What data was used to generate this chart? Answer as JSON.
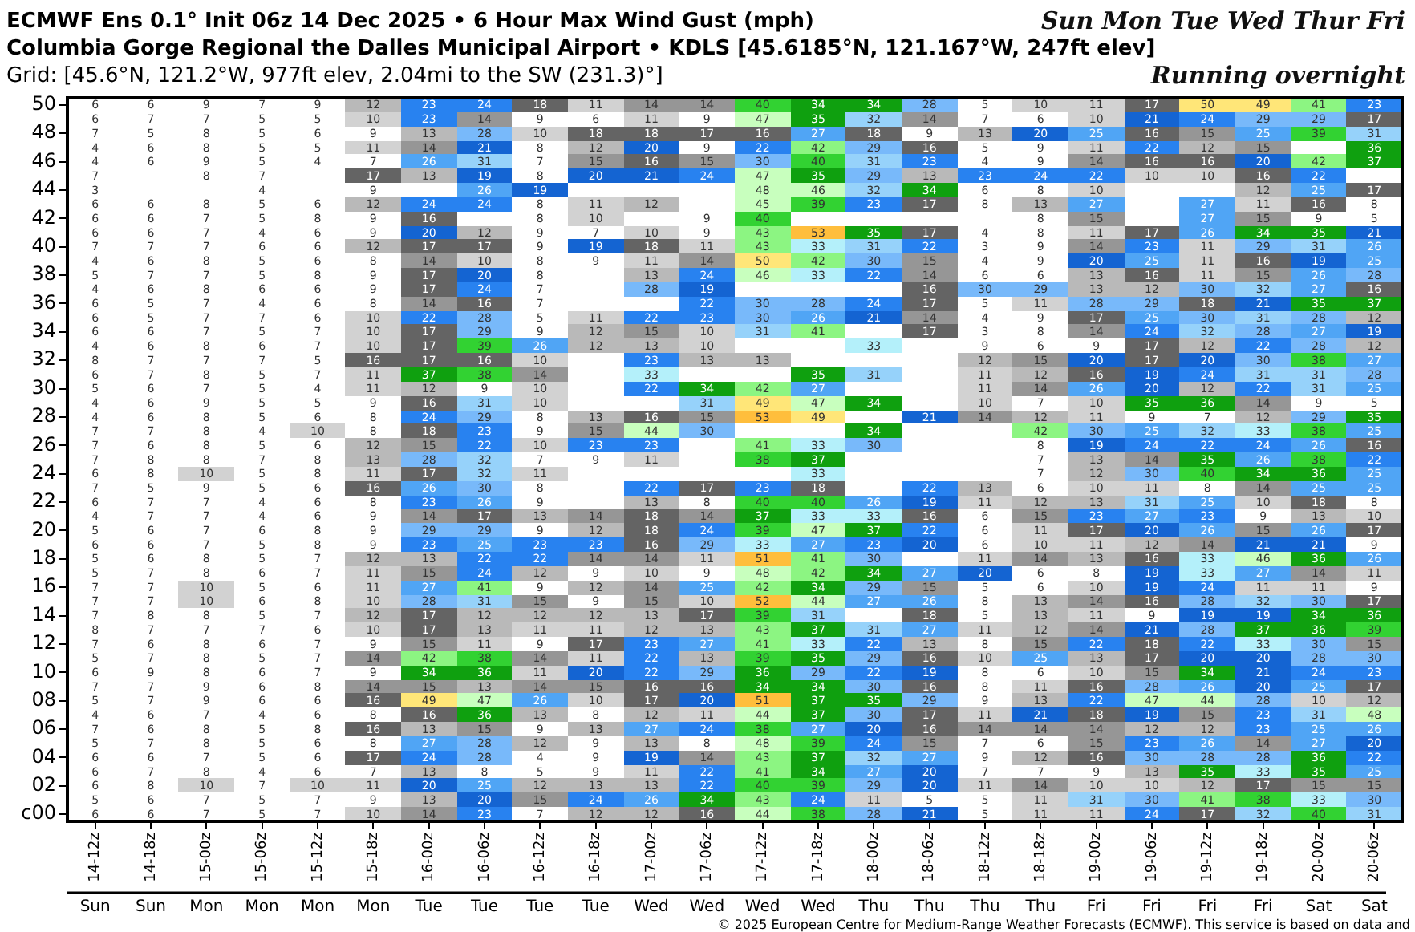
{
  "chart_data": {
    "type": "heatmap",
    "title": "ECMWF Ens 0.1° Init 06z 14 Dec 2025 • 6 Hour Max Wind Gust (mph)",
    "subtitle": "Columbia Gorge Regional the Dalles Municipal Airport • KDLS [45.6185°N, 121.167°W, 247ft elev]",
    "categories": [
      "14-12z",
      "14-18z",
      "15-00z",
      "15-06z",
      "15-12z",
      "15-18z",
      "16-00z",
      "16-06z",
      "16-12z",
      "16-18z",
      "17-00z",
      "17-06z",
      "17-12z",
      "17-18z",
      "18-00z",
      "18-06z",
      "18-12z",
      "18-18z",
      "19-00z",
      "19-06z",
      "19-12z",
      "19-18z",
      "20-00z",
      "20-06z"
    ],
    "y_categories": [
      "50",
      null,
      "48",
      null,
      "46",
      null,
      "44",
      null,
      "42",
      null,
      "40",
      null,
      "38",
      null,
      "36",
      null,
      "34",
      null,
      "32",
      null,
      "30",
      null,
      "28",
      null,
      "26",
      null,
      "24",
      null,
      "22",
      null,
      "20",
      null,
      "18",
      null,
      "16",
      null,
      "14",
      null,
      "12",
      null,
      "10",
      null,
      "08",
      null,
      "06",
      null,
      "04",
      null,
      "02",
      null,
      "c00"
    ],
    "cells": [
      [
        6,
        6,
        9,
        7,
        9,
        12,
        23,
        24,
        18,
        11,
        14,
        14,
        40,
        34,
        34,
        28,
        5,
        10,
        11,
        17,
        50,
        49,
        41,
        23
      ],
      [
        6,
        7,
        7,
        5,
        5,
        10,
        23,
        14,
        9,
        6,
        11,
        9,
        47,
        35,
        32,
        14,
        7,
        6,
        10,
        21,
        24,
        29,
        29,
        17
      ],
      [
        7,
        5,
        8,
        5,
        6,
        9,
        13,
        28,
        10,
        18,
        18,
        17,
        16,
        27,
        18,
        9,
        13,
        20,
        25,
        16,
        15,
        25,
        39,
        31
      ],
      [
        4,
        6,
        8,
        5,
        5,
        11,
        14,
        21,
        8,
        12,
        20,
        9,
        22,
        42,
        29,
        16,
        5,
        9,
        11,
        22,
        12,
        15,
        null,
        36
      ],
      [
        4,
        6,
        9,
        5,
        4,
        7,
        26,
        31,
        7,
        15,
        16,
        15,
        30,
        40,
        31,
        23,
        4,
        9,
        14,
        16,
        16,
        20,
        42,
        37
      ],
      [
        7,
        null,
        8,
        7,
        null,
        17,
        13,
        19,
        8,
        20,
        21,
        24,
        47,
        35,
        29,
        13,
        23,
        24,
        22,
        10,
        10,
        16,
        22,
        null
      ],
      [
        3,
        null,
        null,
        4,
        null,
        9,
        null,
        26,
        19,
        null,
        null,
        null,
        48,
        46,
        32,
        34,
        6,
        8,
        10,
        null,
        null,
        12,
        25,
        17
      ],
      [
        6,
        6,
        8,
        5,
        6,
        12,
        24,
        24,
        8,
        11,
        12,
        null,
        45,
        39,
        23,
        17,
        8,
        13,
        27,
        null,
        27,
        11,
        16,
        8
      ],
      [
        6,
        6,
        7,
        5,
        8,
        9,
        16,
        null,
        8,
        10,
        null,
        9,
        40,
        null,
        null,
        null,
        null,
        8,
        15,
        null,
        27,
        15,
        9,
        5
      ],
      [
        6,
        6,
        7,
        4,
        6,
        9,
        20,
        12,
        9,
        7,
        10,
        9,
        43,
        53,
        35,
        17,
        4,
        8,
        11,
        17,
        26,
        34,
        35,
        21
      ],
      [
        7,
        7,
        7,
        6,
        6,
        12,
        17,
        17,
        9,
        19,
        18,
        11,
        43,
        33,
        31,
        22,
        3,
        9,
        14,
        23,
        11,
        29,
        31,
        26
      ],
      [
        4,
        6,
        8,
        5,
        6,
        8,
        14,
        10,
        8,
        9,
        11,
        14,
        50,
        42,
        30,
        15,
        4,
        9,
        20,
        25,
        11,
        16,
        19,
        25
      ],
      [
        5,
        7,
        7,
        5,
        8,
        9,
        17,
        20,
        8,
        null,
        13,
        24,
        46,
        33,
        22,
        14,
        6,
        6,
        13,
        16,
        11,
        15,
        26,
        28
      ],
      [
        4,
        6,
        8,
        6,
        6,
        9,
        17,
        24,
        7,
        null,
        28,
        19,
        null,
        null,
        null,
        16,
        30,
        29,
        13,
        12,
        30,
        32,
        27,
        16
      ],
      [
        6,
        5,
        7,
        4,
        6,
        8,
        14,
        16,
        7,
        null,
        null,
        22,
        30,
        28,
        24,
        17,
        5,
        11,
        28,
        29,
        18,
        21,
        35,
        37
      ],
      [
        6,
        5,
        7,
        7,
        6,
        10,
        22,
        28,
        5,
        11,
        22,
        23,
        30,
        26,
        21,
        14,
        4,
        9,
        17,
        25,
        30,
        31,
        28,
        12
      ],
      [
        6,
        6,
        7,
        5,
        7,
        10,
        17,
        29,
        9,
        12,
        15,
        10,
        31,
        41,
        null,
        17,
        3,
        8,
        14,
        24,
        32,
        28,
        27,
        19
      ],
      [
        4,
        6,
        8,
        6,
        7,
        10,
        17,
        39,
        26,
        12,
        13,
        10,
        null,
        null,
        33,
        null,
        9,
        6,
        9,
        17,
        12,
        22,
        28,
        12
      ],
      [
        8,
        7,
        7,
        7,
        5,
        16,
        17,
        16,
        10,
        null,
        23,
        13,
        13,
        null,
        null,
        null,
        12,
        15,
        20,
        17,
        20,
        30,
        38,
        27
      ],
      [
        6,
        7,
        8,
        5,
        7,
        11,
        37,
        38,
        14,
        null,
        33,
        null,
        null,
        35,
        31,
        null,
        11,
        12,
        16,
        19,
        24,
        31,
        31,
        28
      ],
      [
        5,
        6,
        7,
        5,
        4,
        11,
        12,
        9,
        10,
        null,
        22,
        34,
        42,
        27,
        null,
        null,
        11,
        14,
        26,
        20,
        12,
        22,
        31,
        25
      ],
      [
        4,
        6,
        9,
        5,
        5,
        9,
        16,
        31,
        10,
        null,
        null,
        31,
        49,
        47,
        34,
        null,
        10,
        7,
        10,
        35,
        36,
        14,
        9,
        5
      ],
      [
        4,
        6,
        8,
        5,
        6,
        8,
        24,
        29,
        8,
        13,
        16,
        15,
        53,
        49,
        null,
        21,
        14,
        12,
        11,
        9,
        7,
        12,
        29,
        35
      ],
      [
        7,
        7,
        8,
        4,
        10,
        8,
        18,
        23,
        9,
        15,
        44,
        30,
        null,
        null,
        34,
        null,
        null,
        42,
        30,
        25,
        32,
        33,
        38,
        25
      ],
      [
        7,
        6,
        8,
        5,
        6,
        12,
        15,
        22,
        10,
        23,
        23,
        null,
        41,
        33,
        30,
        null,
        null,
        8,
        19,
        24,
        22,
        24,
        26,
        16
      ],
      [
        7,
        8,
        8,
        7,
        8,
        13,
        28,
        32,
        7,
        9,
        11,
        null,
        38,
        37,
        null,
        null,
        null,
        7,
        13,
        14,
        35,
        26,
        38,
        22
      ],
      [
        6,
        8,
        10,
        5,
        8,
        11,
        17,
        32,
        11,
        null,
        null,
        null,
        null,
        33,
        null,
        null,
        null,
        7,
        12,
        30,
        40,
        34,
        36,
        25
      ],
      [
        7,
        5,
        9,
        5,
        6,
        16,
        26,
        30,
        8,
        null,
        22,
        17,
        23,
        18,
        null,
        22,
        13,
        6,
        10,
        11,
        8,
        14,
        25,
        25
      ],
      [
        6,
        7,
        7,
        4,
        6,
        8,
        23,
        26,
        9,
        null,
        13,
        8,
        40,
        40,
        26,
        19,
        11,
        12,
        13,
        31,
        25,
        10,
        18,
        8
      ],
      [
        4,
        7,
        7,
        4,
        6,
        9,
        14,
        17,
        13,
        14,
        18,
        14,
        37,
        33,
        33,
        16,
        6,
        15,
        23,
        27,
        23,
        9,
        13,
        10
      ],
      [
        5,
        6,
        7,
        6,
        8,
        9,
        29,
        29,
        9,
        12,
        18,
        24,
        39,
        47,
        37,
        22,
        6,
        11,
        17,
        20,
        26,
        15,
        26,
        17
      ],
      [
        6,
        6,
        7,
        5,
        8,
        9,
        23,
        25,
        23,
        23,
        16,
        29,
        33,
        27,
        23,
        20,
        6,
        10,
        11,
        12,
        14,
        21,
        21,
        9
      ],
      [
        5,
        6,
        8,
        5,
        7,
        12,
        13,
        22,
        22,
        14,
        14,
        11,
        51,
        41,
        30,
        null,
        11,
        14,
        13,
        16,
        33,
        46,
        36,
        26
      ],
      [
        5,
        7,
        8,
        6,
        7,
        11,
        15,
        24,
        12,
        9,
        10,
        9,
        48,
        42,
        34,
        27,
        20,
        6,
        8,
        19,
        33,
        27,
        14,
        11
      ],
      [
        7,
        7,
        10,
        5,
        6,
        11,
        27,
        41,
        9,
        12,
        14,
        25,
        42,
        34,
        29,
        15,
        5,
        6,
        10,
        19,
        24,
        11,
        11,
        9
      ],
      [
        7,
        7,
        10,
        6,
        8,
        10,
        28,
        31,
        15,
        9,
        15,
        10,
        52,
        44,
        27,
        26,
        8,
        13,
        14,
        16,
        28,
        32,
        30,
        17
      ],
      [
        7,
        8,
        8,
        5,
        7,
        12,
        17,
        12,
        12,
        12,
        13,
        17,
        39,
        31,
        null,
        18,
        5,
        13,
        11,
        9,
        19,
        19,
        34,
        36
      ],
      [
        8,
        7,
        7,
        7,
        6,
        10,
        17,
        13,
        11,
        11,
        12,
        13,
        43,
        37,
        31,
        27,
        11,
        12,
        14,
        21,
        28,
        37,
        36,
        39
      ],
      [
        7,
        6,
        8,
        6,
        7,
        9,
        15,
        11,
        9,
        17,
        23,
        27,
        41,
        33,
        22,
        13,
        8,
        15,
        22,
        18,
        22,
        33,
        30,
        15
      ],
      [
        5,
        7,
        8,
        5,
        7,
        14,
        42,
        38,
        14,
        11,
        22,
        13,
        39,
        35,
        29,
        16,
        10,
        25,
        13,
        17,
        20,
        20,
        28,
        30
      ],
      [
        6,
        9,
        8,
        6,
        7,
        9,
        34,
        36,
        11,
        20,
        22,
        29,
        36,
        29,
        22,
        19,
        8,
        6,
        10,
        15,
        34,
        21,
        24,
        23
      ],
      [
        7,
        7,
        9,
        6,
        8,
        14,
        15,
        13,
        14,
        15,
        16,
        16,
        34,
        34,
        30,
        16,
        8,
        11,
        16,
        28,
        26,
        20,
        25,
        17
      ],
      [
        5,
        7,
        9,
        6,
        6,
        16,
        49,
        47,
        26,
        10,
        17,
        20,
        51,
        37,
        35,
        29,
        9,
        13,
        22,
        47,
        44,
        28,
        10,
        12
      ],
      [
        4,
        6,
        7,
        4,
        6,
        8,
        16,
        36,
        13,
        8,
        12,
        11,
        44,
        37,
        30,
        17,
        11,
        21,
        18,
        19,
        15,
        23,
        31,
        48
      ],
      [
        7,
        6,
        8,
        5,
        8,
        16,
        13,
        15,
        9,
        13,
        27,
        24,
        38,
        27,
        20,
        16,
        14,
        14,
        14,
        12,
        12,
        23,
        25,
        26
      ],
      [
        5,
        7,
        8,
        5,
        6,
        8,
        27,
        28,
        12,
        9,
        13,
        8,
        48,
        39,
        24,
        15,
        7,
        6,
        15,
        23,
        26,
        14,
        27,
        20
      ],
      [
        6,
        6,
        7,
        5,
        6,
        17,
        24,
        28,
        4,
        9,
        19,
        14,
        43,
        37,
        32,
        27,
        9,
        12,
        16,
        30,
        28,
        28,
        36,
        22
      ],
      [
        6,
        7,
        8,
        4,
        6,
        7,
        13,
        8,
        5,
        9,
        11,
        22,
        41,
        34,
        27,
        20,
        7,
        7,
        9,
        13,
        35,
        33,
        35,
        25
      ],
      [
        6,
        8,
        10,
        7,
        10,
        11,
        20,
        25,
        12,
        13,
        13,
        22,
        40,
        39,
        29,
        20,
        11,
        14,
        10,
        10,
        12,
        17,
        15,
        15
      ],
      [
        5,
        6,
        7,
        5,
        7,
        9,
        13,
        20,
        15,
        24,
        26,
        34,
        43,
        24,
        11,
        5,
        5,
        11,
        31,
        30,
        41,
        38,
        33,
        30
      ],
      [
        6,
        6,
        7,
        5,
        7,
        10,
        14,
        23,
        7,
        12,
        12,
        16,
        44,
        38,
        28,
        21,
        5,
        11,
        11,
        24,
        17,
        32,
        40,
        31
      ]
    ],
    "data_labels": true,
    "annotations": [
      "Grid: [45.6°N, 121.2°W, 977ft elev, 2.04mi to the SW (231.3)°]",
      "Sun Mon Tue Wed Thur Fri",
      "Running overnight",
      "© 2025 European Centre for Medium-Range Weather Forecasts (ECMWF). This service is based on data and",
      "Sun",
      "Sun",
      "Mon",
      "Mon",
      "Mon",
      "Mon",
      "Tue",
      "Tue",
      "Tue",
      "Tue",
      "Wed",
      "Wed",
      "Wed",
      "Wed",
      "Thu",
      "Thu",
      "Thu",
      "Thu",
      "Fri",
      "Fri",
      "Fri",
      "Fri",
      "Sat",
      "Sat"
    ]
  }
}
